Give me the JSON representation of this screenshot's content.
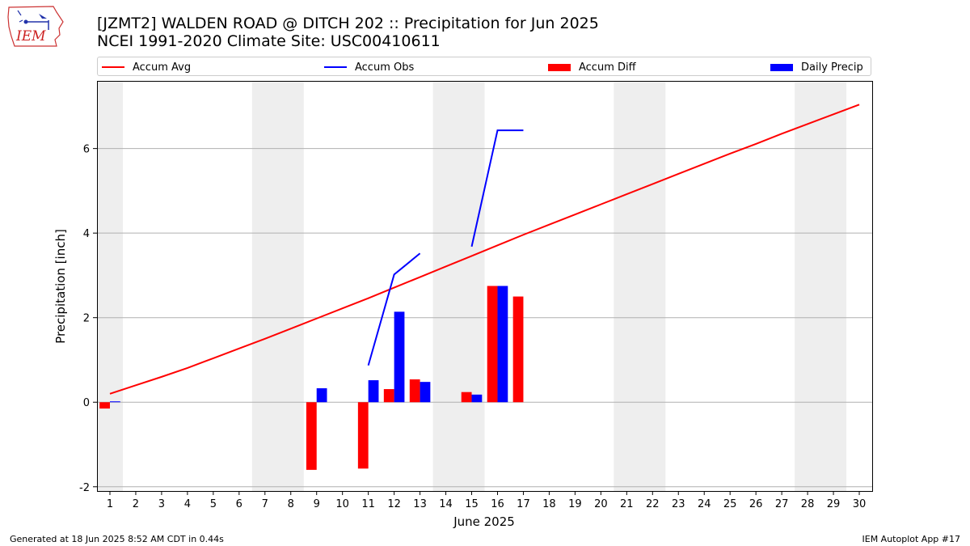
{
  "header": {
    "title_line1": "[JZMT2] WALDEN ROAD @ DITCH 202 :: Precipitation for Jun 2025",
    "title_line2": "NCEI 1991-2020 Climate Site: USC00410611"
  },
  "logo": {
    "text": "IEM",
    "icon": "iem-iowa-logo"
  },
  "legend": {
    "accum_avg": "Accum Avg",
    "accum_obs": "Accum Obs",
    "accum_diff": "Accum Diff",
    "daily_precip": "Daily Precip"
  },
  "footer": {
    "generated": "Generated at 18 Jun 2025 8:52 AM CDT in 0.44s",
    "app": "IEM Autoplot App #17"
  },
  "colors": {
    "avg": "#ff0000",
    "obs": "#0000ff",
    "diff": "#ff0000",
    "daily": "#0000ff",
    "weekend_band": "#eeeeee",
    "grid": "#b0b0b0"
  },
  "chart_data": {
    "type": "bar",
    "xlabel": "June 2025",
    "ylabel": "Precipitation [inch]",
    "xlim": [
      0.5,
      30.5
    ],
    "ylim": [
      -2.1,
      7.6
    ],
    "yticks": [
      -2,
      0,
      2,
      4,
      6
    ],
    "grid": "horizontal",
    "legend_position": "top",
    "x": [
      1,
      2,
      3,
      4,
      5,
      6,
      7,
      8,
      9,
      10,
      11,
      12,
      13,
      14,
      15,
      16,
      17,
      18,
      19,
      20,
      21,
      22,
      23,
      24,
      25,
      26,
      27,
      28,
      29,
      30
    ],
    "shaded_days": [
      [
        0.5,
        1.5
      ],
      [
        6.5,
        8.5
      ],
      [
        13.5,
        15.5
      ],
      [
        20.5,
        22.5
      ],
      [
        27.5,
        29.5
      ]
    ],
    "series": [
      {
        "name": "Accum Avg",
        "kind": "line",
        "x": [
          1,
          2,
          3,
          4,
          5,
          6,
          7,
          8,
          9,
          10,
          11,
          12,
          13,
          14,
          15,
          16,
          17,
          18,
          19,
          20,
          21,
          22,
          23,
          24,
          25,
          26,
          27,
          28,
          29,
          30
        ],
        "values": [
          0.2,
          0.4,
          0.6,
          0.81,
          1.04,
          1.27,
          1.5,
          1.74,
          1.98,
          2.22,
          2.46,
          2.71,
          2.96,
          3.21,
          3.46,
          3.71,
          3.96,
          4.2,
          4.44,
          4.68,
          4.92,
          5.16,
          5.4,
          5.64,
          5.88,
          6.11,
          6.35,
          6.58,
          6.81,
          7.04
        ]
      },
      {
        "name": "Accum Obs",
        "kind": "line",
        "segments": [
          {
            "x": [
              11,
              12,
              13
            ],
            "values": [
              0.87,
              3.02,
              3.52
            ]
          },
          {
            "x": [
              15,
              16,
              17
            ],
            "values": [
              3.68,
              6.43,
              6.43
            ]
          }
        ]
      },
      {
        "name": "Accum Diff",
        "kind": "bar",
        "x": [
          1,
          9,
          11,
          12,
          13,
          15,
          16,
          17
        ],
        "values": [
          -0.15,
          -1.6,
          -1.57,
          0.31,
          0.54,
          0.24,
          2.75,
          2.5
        ]
      },
      {
        "name": "Daily Precip",
        "kind": "bar",
        "x": [
          1,
          9,
          11,
          12,
          13,
          15,
          16
        ],
        "values": [
          0.02,
          0.33,
          0.52,
          2.14,
          0.48,
          0.18,
          2.75
        ]
      }
    ]
  }
}
